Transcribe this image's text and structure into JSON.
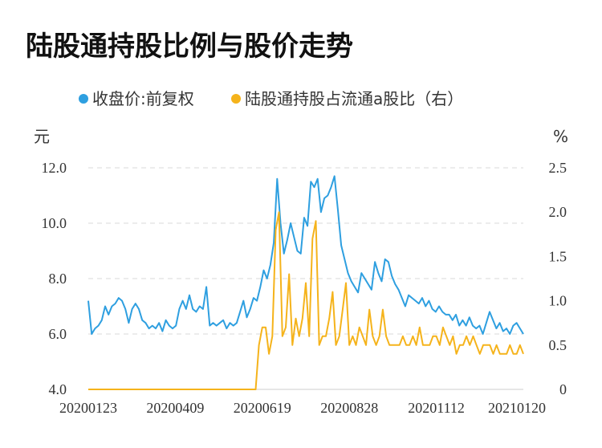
{
  "chart_data": {
    "type": "line",
    "title": "陆股通持股比例与股价走势",
    "left_unit": "元",
    "right_unit": "%",
    "x_tick_labels": [
      "20200123",
      "20200409",
      "20200619",
      "20200828",
      "20201112",
      "20210120"
    ],
    "y_left": {
      "ticks": [
        "4.0",
        "6.0",
        "8.0",
        "10.0",
        "12.0"
      ],
      "range": [
        4.0,
        12.0
      ]
    },
    "y_right": {
      "ticks": [
        "0",
        "0.5",
        "1.0",
        "1.5",
        "2.0",
        "2.5"
      ],
      "range": [
        0,
        2.5
      ]
    },
    "grid": true,
    "legend_position": "top",
    "series": [
      {
        "name": "收盘价:前复权",
        "axis": "left",
        "color": "#2E9FE0",
        "values": [
          7.2,
          6.0,
          6.2,
          6.3,
          6.5,
          7.0,
          6.7,
          7.0,
          7.1,
          7.3,
          7.2,
          6.9,
          6.4,
          6.9,
          7.1,
          6.9,
          6.5,
          6.4,
          6.2,
          6.3,
          6.2,
          6.4,
          6.1,
          6.5,
          6.3,
          6.2,
          6.3,
          6.9,
          7.2,
          6.9,
          7.4,
          6.9,
          6.8,
          7.0,
          6.9,
          7.7,
          6.3,
          6.4,
          6.3,
          6.4,
          6.5,
          6.2,
          6.4,
          6.3,
          6.4,
          6.8,
          7.2,
          6.6,
          6.9,
          7.3,
          7.2,
          7.7,
          8.3,
          8.0,
          8.5,
          9.3,
          11.6,
          10.0,
          8.9,
          9.4,
          10.0,
          9.5,
          9.0,
          8.9,
          10.2,
          9.9,
          11.5,
          11.3,
          11.6,
          10.4,
          10.9,
          11.0,
          11.3,
          11.7,
          10.5,
          9.2,
          8.7,
          8.2,
          7.9,
          7.7,
          7.5,
          8.2,
          8.0,
          7.8,
          7.6,
          8.6,
          8.2,
          7.9,
          8.7,
          8.6,
          8.1,
          7.8,
          7.6,
          7.3,
          7.0,
          7.4,
          7.3,
          7.2,
          7.1,
          7.3,
          7.0,
          7.2,
          6.9,
          6.8,
          7.0,
          6.8,
          6.7,
          6.7,
          6.5,
          6.7,
          6.3,
          6.5,
          6.3,
          6.6,
          6.3,
          6.2,
          6.3,
          6.0,
          6.4,
          6.8,
          6.5,
          6.2,
          6.4,
          6.1,
          6.2,
          6.0,
          6.3,
          6.4,
          6.2,
          6.0
        ]
      },
      {
        "name": "陆股通持股占流通a股比（右）",
        "axis": "right",
        "color": "#F5B31B",
        "values": [
          0.0,
          0.0,
          0.0,
          0.0,
          0.0,
          0.0,
          0.0,
          0.0,
          0.0,
          0.0,
          0.0,
          0.0,
          0.0,
          0.0,
          0.0,
          0.0,
          0.0,
          0.0,
          0.0,
          0.0,
          0.0,
          0.0,
          0.0,
          0.0,
          0.0,
          0.0,
          0.0,
          0.0,
          0.0,
          0.0,
          0.0,
          0.0,
          0.0,
          0.0,
          0.0,
          0.0,
          0.0,
          0.0,
          0.0,
          0.0,
          0.0,
          0.0,
          0.0,
          0.0,
          0.0,
          0.0,
          0.0,
          0.0,
          0.0,
          0.0,
          0.0,
          0.5,
          0.7,
          0.7,
          0.4,
          0.6,
          1.8,
          2.0,
          0.6,
          0.7,
          1.3,
          0.5,
          0.8,
          0.6,
          0.8,
          1.2,
          0.6,
          1.7,
          1.9,
          0.5,
          0.6,
          0.6,
          0.8,
          1.1,
          0.5,
          0.6,
          0.9,
          1.2,
          0.5,
          0.6,
          0.5,
          0.7,
          0.6,
          0.5,
          0.9,
          0.6,
          0.5,
          0.6,
          0.9,
          0.6,
          0.5,
          0.5,
          0.5,
          0.5,
          0.6,
          0.5,
          0.5,
          0.6,
          0.5,
          0.7,
          0.5,
          0.5,
          0.5,
          0.6,
          0.6,
          0.5,
          0.7,
          0.6,
          0.5,
          0.6,
          0.4,
          0.5,
          0.5,
          0.6,
          0.5,
          0.6,
          0.5,
          0.4,
          0.5,
          0.5,
          0.5,
          0.4,
          0.5,
          0.4,
          0.4,
          0.4,
          0.5,
          0.4,
          0.4,
          0.5,
          0.4
        ]
      }
    ]
  }
}
